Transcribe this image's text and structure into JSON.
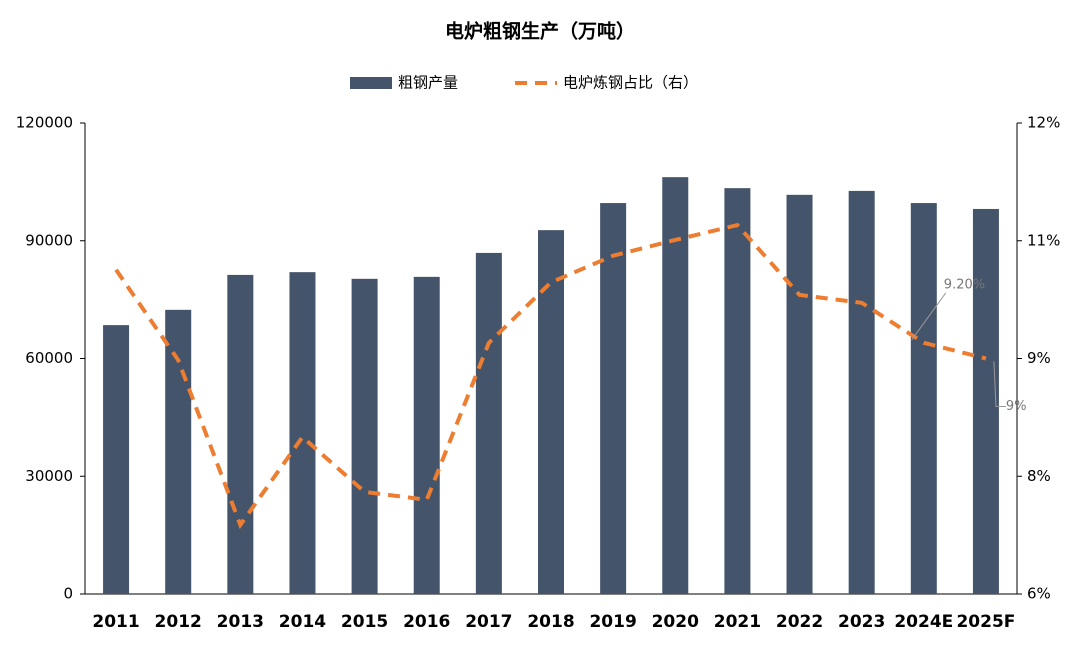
{
  "chart_data": {
    "type": "bar-line",
    "title": "电炉粗钢生产（万吨）",
    "categories": [
      "2011",
      "2012",
      "2013",
      "2014",
      "2015",
      "2016",
      "2017",
      "2018",
      "2019",
      "2020",
      "2021",
      "2022",
      "2023",
      "2024E",
      "2025F"
    ],
    "series": [
      {
        "name": "粗钢产量",
        "type": "bar",
        "color": "#44546a",
        "values": [
          68500,
          72400,
          81300,
          82000,
          80300,
          80800,
          86900,
          92700,
          99600,
          106200,
          103400,
          101700,
          102700,
          99600,
          98100
        ]
      },
      {
        "name": "电炉炼钢占比（右）",
        "type": "line",
        "axis": "y2",
        "color": "#ed7d31",
        "dashed": true,
        "values": [
          10.13,
          8.98,
          6.88,
          8.0,
          7.3,
          7.2,
          9.2,
          9.97,
          10.31,
          10.51,
          10.7,
          9.81,
          9.71,
          9.2,
          9
        ],
        "value_labels": [
          null,
          null,
          null,
          null,
          null,
          null,
          null,
          null,
          null,
          null,
          null,
          null,
          null,
          "9.20%",
          "9%"
        ]
      }
    ],
    "ylim": [
      0,
      120000
    ],
    "yticks": [
      0,
      30000,
      60000,
      90000,
      120000
    ],
    "y2lim": [
      6,
      12
    ],
    "y2ticks": [
      {
        "value": 6,
        "label": "6%"
      },
      {
        "value": 7.5,
        "label": "8%"
      },
      {
        "value": 9,
        "label": "9%"
      },
      {
        "value": 10.5,
        "label": "11%"
      },
      {
        "value": 12,
        "label": "12%"
      }
    ],
    "legend": "top",
    "grid": false
  }
}
